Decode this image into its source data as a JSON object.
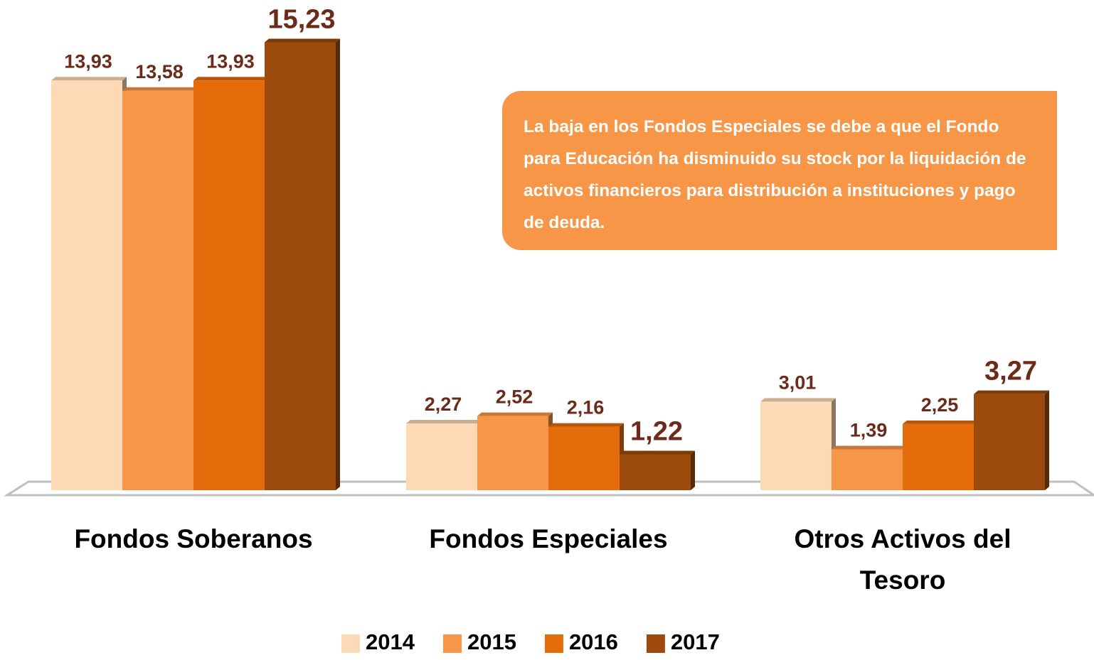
{
  "chart_data": {
    "type": "bar",
    "categories": [
      "Fondos Soberanos",
      "Fondos Especiales",
      "Otros Activos del Tesoro"
    ],
    "series": [
      {
        "name": "2014",
        "color": "#fdd9b5",
        "values": [
          13.93,
          2.27,
          3.01
        ],
        "value_labels": [
          "13,93",
          "2,27",
          "3,01"
        ]
      },
      {
        "name": "2015",
        "color": "#f79646",
        "values": [
          13.58,
          2.52,
          1.39
        ],
        "value_labels": [
          "13,58",
          "2,52",
          "1,39"
        ]
      },
      {
        "name": "2016",
        "color": "#e46c0a",
        "values": [
          13.93,
          2.16,
          2.25
        ],
        "value_labels": [
          "13,93",
          "2,16",
          "2,25"
        ]
      },
      {
        "name": "2017",
        "color": "#9c4a0d",
        "values": [
          15.23,
          1.22,
          3.27
        ],
        "value_labels": [
          "15,23",
          "1,22",
          "3,27"
        ]
      }
    ],
    "annotation": "La baja en los Fondos Especiales se debe a que el Fondo para Educación ha disminuido su stock por la liquidación de activos financieros para distribución a instituciones y pago de deuda.",
    "legend": "bottom"
  }
}
